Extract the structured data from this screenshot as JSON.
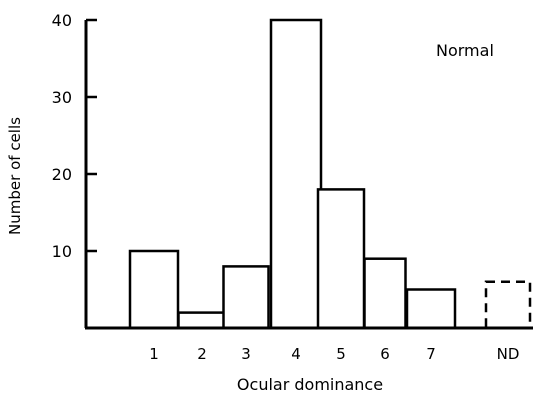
{
  "chart_data": {
    "type": "bar",
    "categories": [
      "1",
      "2",
      "3",
      "4",
      "5",
      "6",
      "7",
      "ND"
    ],
    "values": [
      10,
      2,
      8,
      40,
      18,
      9,
      5,
      6
    ],
    "dashed_categories": [
      "ND"
    ],
    "title": "",
    "annotation": "Normal",
    "xlabel": "Ocular dominance",
    "ylabel": "Number of cells",
    "yticks": [
      10,
      20,
      30,
      40
    ],
    "ylim": [
      0,
      40
    ],
    "grid": false,
    "legend": "none",
    "colors": {
      "bar_fill": "#ffffff",
      "bar_stroke": "#000000",
      "axis": "#000000"
    }
  }
}
